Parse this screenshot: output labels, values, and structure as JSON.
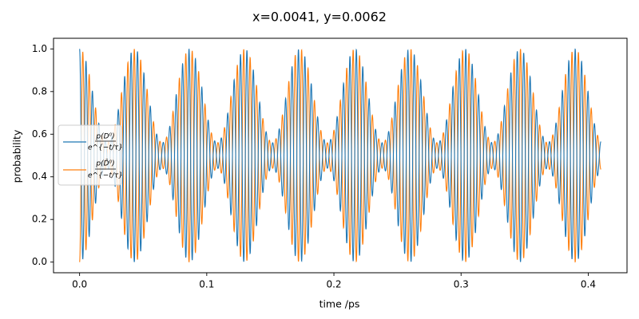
{
  "chart_data": {
    "type": "line",
    "title": "x=0.0041, y=0.0062",
    "xlabel": "time /ps",
    "ylabel": "probability",
    "xlim": [
      -0.0205,
      0.4305
    ],
    "ylim": [
      -0.05,
      1.05
    ],
    "xticks": [
      0.0,
      0.1,
      0.2,
      0.3,
      0.4
    ],
    "xtick_labels": [
      "0.0",
      "0.1",
      "0.2",
      "0.3",
      "0.4"
    ],
    "yticks": [
      0.0,
      0.2,
      0.4,
      0.6,
      0.8,
      1.0
    ],
    "ytick_labels": [
      "0.0",
      "0.2",
      "0.4",
      "0.6",
      "0.8",
      "1.0"
    ],
    "grid": false,
    "legend_position": "center-left",
    "x_range": [
      0.0,
      0.41
    ],
    "envelope_period_ps": 0.0433,
    "carrier_cycles_in_range": 81,
    "envelope_minimum": 0.12,
    "series": [
      {
        "legend": {
          "num": "p(D⁰)",
          "den": "e^{−t/τ}"
        },
        "color": "#1f77b4",
        "start_value": 1.0,
        "end_value": 0.87
      },
      {
        "legend": {
          "num": "p(D̄⁰)",
          "den": "e^{−t/τ}"
        },
        "color": "#ff7f0e",
        "start_value": 0.0,
        "end_value": 0.13
      }
    ]
  }
}
